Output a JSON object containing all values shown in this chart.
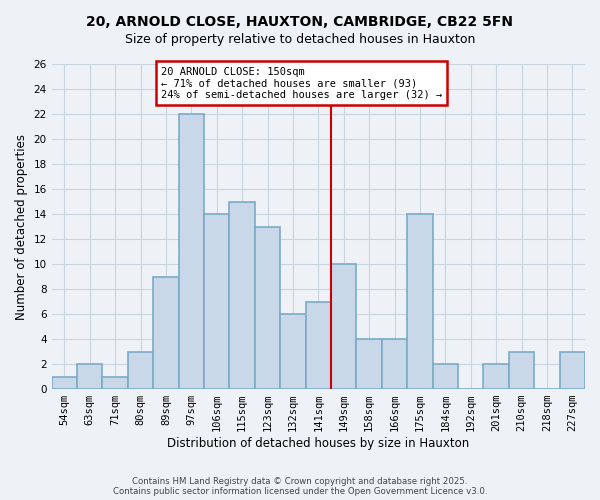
{
  "title": "20, ARNOLD CLOSE, HAUXTON, CAMBRIDGE, CB22 5FN",
  "subtitle": "Size of property relative to detached houses in Hauxton",
  "xlabel": "Distribution of detached houses by size in Hauxton",
  "ylabel": "Number of detached properties",
  "bar_labels": [
    "54sqm",
    "63sqm",
    "71sqm",
    "80sqm",
    "89sqm",
    "97sqm",
    "106sqm",
    "115sqm",
    "123sqm",
    "132sqm",
    "141sqm",
    "149sqm",
    "158sqm",
    "166sqm",
    "175sqm",
    "184sqm",
    "192sqm",
    "201sqm",
    "210sqm",
    "218sqm",
    "227sqm"
  ],
  "bar_heights": [
    1,
    2,
    1,
    3,
    9,
    22,
    14,
    15,
    13,
    6,
    7,
    10,
    4,
    4,
    14,
    2,
    0,
    2,
    3,
    0,
    3
  ],
  "bar_color": "#c8d8e8",
  "bar_edgecolor": "#7aaac8",
  "bar_linewidth": 1.2,
  "vline_x_label": "149sqm",
  "vline_color": "#cc0000",
  "vline_linewidth": 1.5,
  "ylim": [
    0,
    26
  ],
  "yticks": [
    0,
    2,
    4,
    6,
    8,
    10,
    12,
    14,
    16,
    18,
    20,
    22,
    24,
    26
  ],
  "annotation_title": "20 ARNOLD CLOSE: 150sqm",
  "annotation_line1": "← 71% of detached houses are smaller (93)",
  "annotation_line2": "24% of semi-detached houses are larger (32) →",
  "annotation_box_edgecolor": "#cc0000",
  "grid_color": "#c8d4de",
  "background_color": "#eef2f7",
  "footer1": "Contains HM Land Registry data © Crown copyright and database right 2025.",
  "footer2": "Contains public sector information licensed under the Open Government Licence v3.0."
}
